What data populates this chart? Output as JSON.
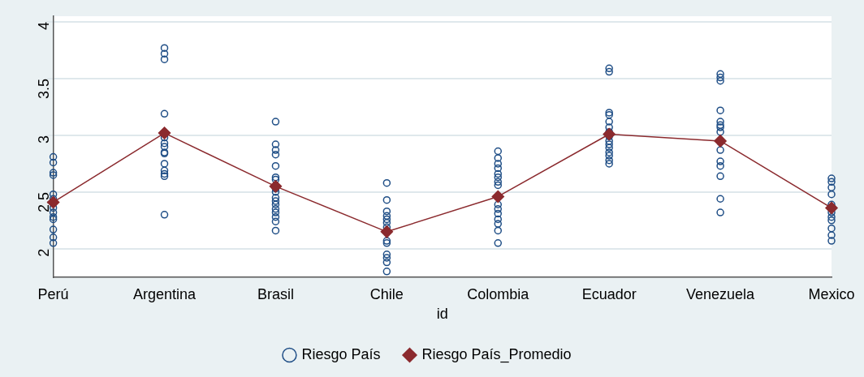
{
  "chart_data": {
    "type": "scatter",
    "xlabel": "id",
    "categories": [
      "Perú",
      "Argentina",
      "Brasil",
      "Chile",
      "Colombia",
      "Ecuador",
      "Venezuela",
      "Mexico"
    ],
    "series": [
      {
        "name": "Riesgo País",
        "marker": "circle",
        "color": "#1f4e86",
        "x": [
          "Perú",
          "Perú",
          "Perú",
          "Perú",
          "Perú",
          "Perú",
          "Perú",
          "Perú",
          "Perú",
          "Perú",
          "Perú",
          "Perú",
          "Perú",
          "Perú",
          "Argentina",
          "Argentina",
          "Argentina",
          "Argentina",
          "Argentina",
          "Argentina",
          "Argentina",
          "Argentina",
          "Argentina",
          "Argentina",
          "Argentina",
          "Argentina",
          "Argentina",
          "Argentina",
          "Brasil",
          "Brasil",
          "Brasil",
          "Brasil",
          "Brasil",
          "Brasil",
          "Brasil",
          "Brasil",
          "Brasil",
          "Brasil",
          "Brasil",
          "Brasil",
          "Brasil",
          "Brasil",
          "Brasil",
          "Brasil",
          "Brasil",
          "Chile",
          "Chile",
          "Chile",
          "Chile",
          "Chile",
          "Chile",
          "Chile",
          "Chile",
          "Chile",
          "Chile",
          "Chile",
          "Chile",
          "Chile",
          "Colombia",
          "Colombia",
          "Colombia",
          "Colombia",
          "Colombia",
          "Colombia",
          "Colombia",
          "Colombia",
          "Colombia",
          "Colombia",
          "Colombia",
          "Colombia",
          "Colombia",
          "Colombia",
          "Colombia",
          "Ecuador",
          "Ecuador",
          "Ecuador",
          "Ecuador",
          "Ecuador",
          "Ecuador",
          "Ecuador",
          "Ecuador",
          "Ecuador",
          "Ecuador",
          "Ecuador",
          "Ecuador",
          "Ecuador",
          "Ecuador",
          "Ecuador",
          "Venezuela",
          "Venezuela",
          "Venezuela",
          "Venezuela",
          "Venezuela",
          "Venezuela",
          "Venezuela",
          "Venezuela",
          "Venezuela",
          "Venezuela",
          "Venezuela",
          "Venezuela",
          "Venezuela",
          "Venezuela",
          "Venezuela",
          "Mexico",
          "Mexico",
          "Mexico",
          "Mexico",
          "Mexico",
          "Mexico",
          "Mexico",
          "Mexico",
          "Mexico",
          "Mexico",
          "Mexico"
        ],
        "values": [
          2.81,
          2.76,
          2.67,
          2.65,
          2.48,
          2.44,
          2.4,
          2.36,
          2.32,
          2.28,
          2.26,
          2.17,
          2.1,
          2.05,
          3.77,
          3.72,
          3.67,
          3.19,
          2.98,
          2.93,
          2.9,
          2.85,
          2.84,
          2.75,
          2.69,
          2.66,
          2.64,
          2.3,
          3.12,
          2.92,
          2.87,
          2.83,
          2.73,
          2.63,
          2.61,
          2.53,
          2.5,
          2.45,
          2.42,
          2.39,
          2.35,
          2.32,
          2.28,
          2.24,
          2.16,
          2.58,
          2.43,
          2.33,
          2.29,
          2.26,
          2.23,
          2.19,
          2.07,
          2.05,
          1.95,
          1.92,
          1.88,
          1.8,
          2.86,
          2.8,
          2.75,
          2.71,
          2.66,
          2.63,
          2.59,
          2.56,
          2.39,
          2.35,
          2.31,
          2.26,
          2.22,
          2.16,
          2.05,
          3.59,
          3.56,
          3.2,
          3.18,
          3.12,
          3.07,
          3.03,
          2.99,
          2.95,
          2.92,
          2.89,
          2.85,
          2.82,
          2.78,
          2.75,
          3.54,
          3.51,
          3.48,
          3.22,
          3.12,
          3.09,
          3.07,
          3.03,
          2.94,
          2.87,
          2.77,
          2.73,
          2.64,
          2.44,
          2.32,
          2.62,
          2.59,
          2.54,
          2.48,
          2.39,
          2.32,
          2.28,
          2.25,
          2.18,
          2.12,
          2.07
        ]
      },
      {
        "name": "Riesgo País_Promedio",
        "type": "line",
        "marker": "diamond",
        "line_style": "solid",
        "color": "#8b2a2e",
        "values": [
          2.41,
          3.02,
          2.55,
          2.15,
          2.46,
          3.01,
          2.95,
          2.36
        ]
      }
    ],
    "ylim": [
      1.75,
      4.05
    ],
    "yticks": [
      2,
      {
        "value": 2.5,
        "label": "2.5"
      },
      3,
      {
        "value": 3.5,
        "label": "3.5"
      },
      4
    ],
    "grid": "y",
    "legend": "bottom"
  }
}
